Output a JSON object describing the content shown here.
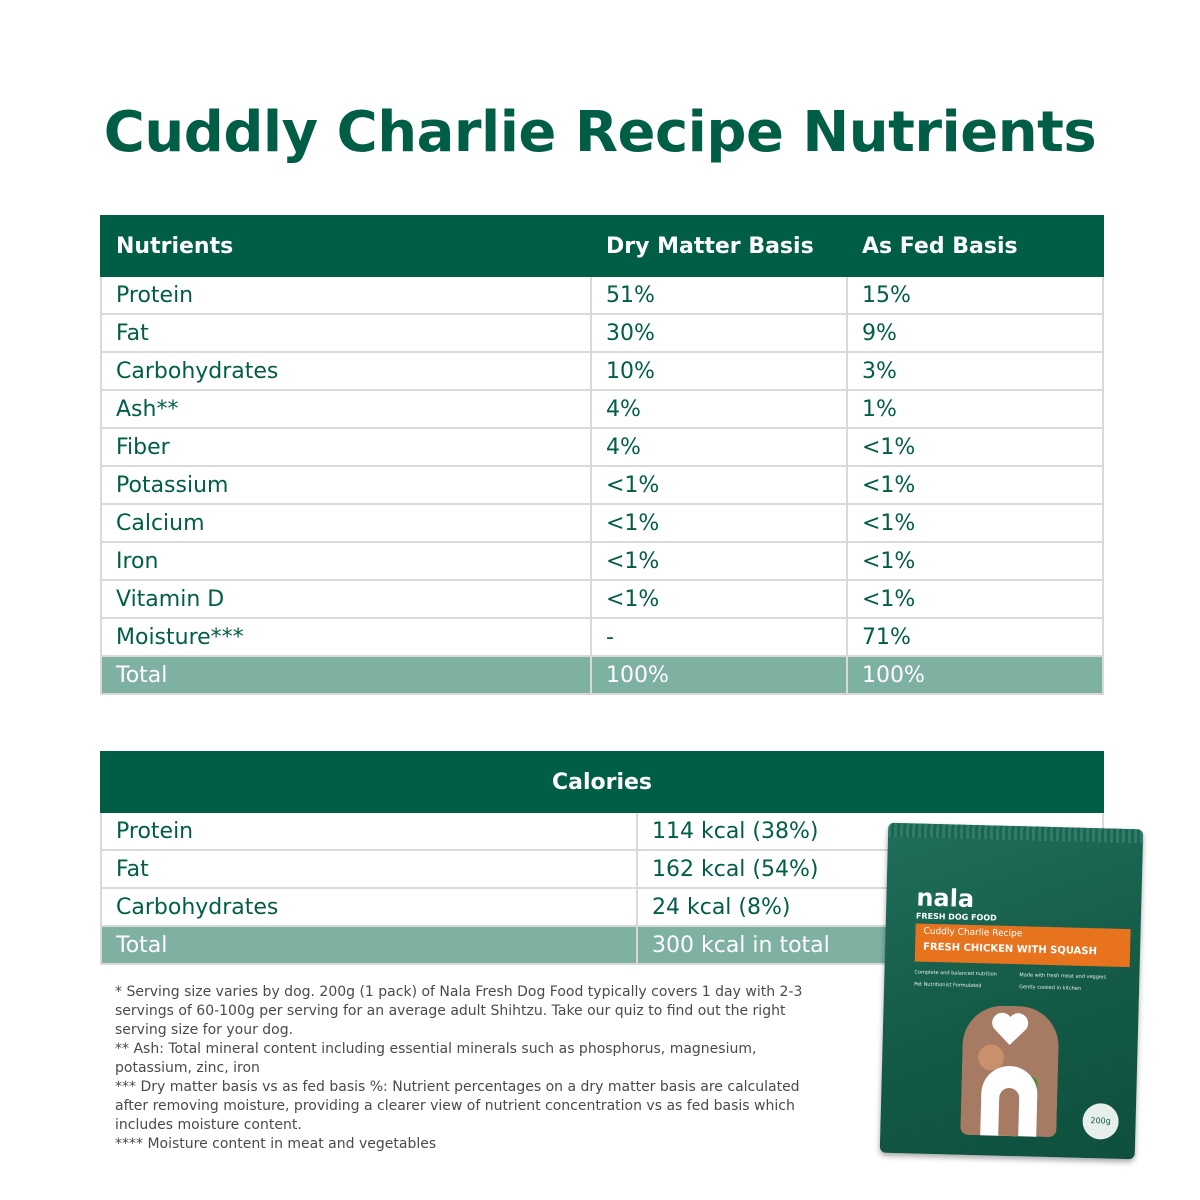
{
  "page": {
    "title": "Cuddly Charlie Recipe Nutrients"
  },
  "nutrients_table": {
    "headers": [
      "Nutrients",
      "Dry Matter Basis",
      "As Fed Basis"
    ],
    "rows": [
      {
        "name": "Protein",
        "dry": "51%",
        "fed": "15%"
      },
      {
        "name": "Fat",
        "dry": "30%",
        "fed": "9%"
      },
      {
        "name": "Carbohydrates",
        "dry": "10%",
        "fed": "3%"
      },
      {
        "name": "Ash**",
        "dry": "4%",
        "fed": "1%"
      },
      {
        "name": "Fiber",
        "dry": "4%",
        "fed": "<1%"
      },
      {
        "name": "Potassium",
        "dry": "<1%",
        "fed": "<1%"
      },
      {
        "name": "Calcium",
        "dry": "<1%",
        "fed": "<1%"
      },
      {
        "name": "Iron",
        "dry": "<1%",
        "fed": "<1%"
      },
      {
        "name": "Vitamin D",
        "dry": "<1%",
        "fed": "<1%"
      },
      {
        "name": "Moisture***",
        "dry": "-",
        "fed": "71%"
      }
    ],
    "total": {
      "name": "Total",
      "dry": "100%",
      "fed": "100%"
    }
  },
  "calories_table": {
    "header": "Calories",
    "rows": [
      {
        "name": "Protein",
        "value": "114 kcal (38%)"
      },
      {
        "name": "Fat",
        "value": "162 kcal (54%)"
      },
      {
        "name": "Carbohydrates",
        "value": "24 kcal (8%)"
      }
    ],
    "total": {
      "name": "Total",
      "value": "300 kcal in total"
    }
  },
  "footnotes": [
    "* Serving size varies by dog. 200g (1 pack) of Nala Fresh Dog Food typically covers 1 day with 2-3 servings of 60-100g per serving for an average adult Shihtzu. Take our quiz to find out the right serving size for your dog.",
    "** Ash: Total mineral content including essential minerals such as phosphorus, magnesium, potassium, zinc, iron",
    "*** Dry matter basis vs as fed basis %: Nutrient percentages on a dry matter basis are calculated after removing moisture, providing a clearer view of nutrient concentration vs as fed basis which includes moisture content.",
    "**** Moisture content in meat and vegetables"
  ],
  "package": {
    "brand": "nala",
    "subtitle": "FRESH DOG FOOD",
    "recipe": "Cuddly Charlie Recipe",
    "flavor": "FRESH CHICKEN WITH SQUASH",
    "features": [
      "Complete and balanced nutrition",
      "Made with fresh meat and veggies",
      "Pet Nutritionist Formulated",
      "Gently cooked in kitchen"
    ],
    "weight": "200g"
  },
  "colors": {
    "brand_green": "#005e46",
    "total_row": "#7fb1a3",
    "pack_orange": "#e8731e"
  }
}
